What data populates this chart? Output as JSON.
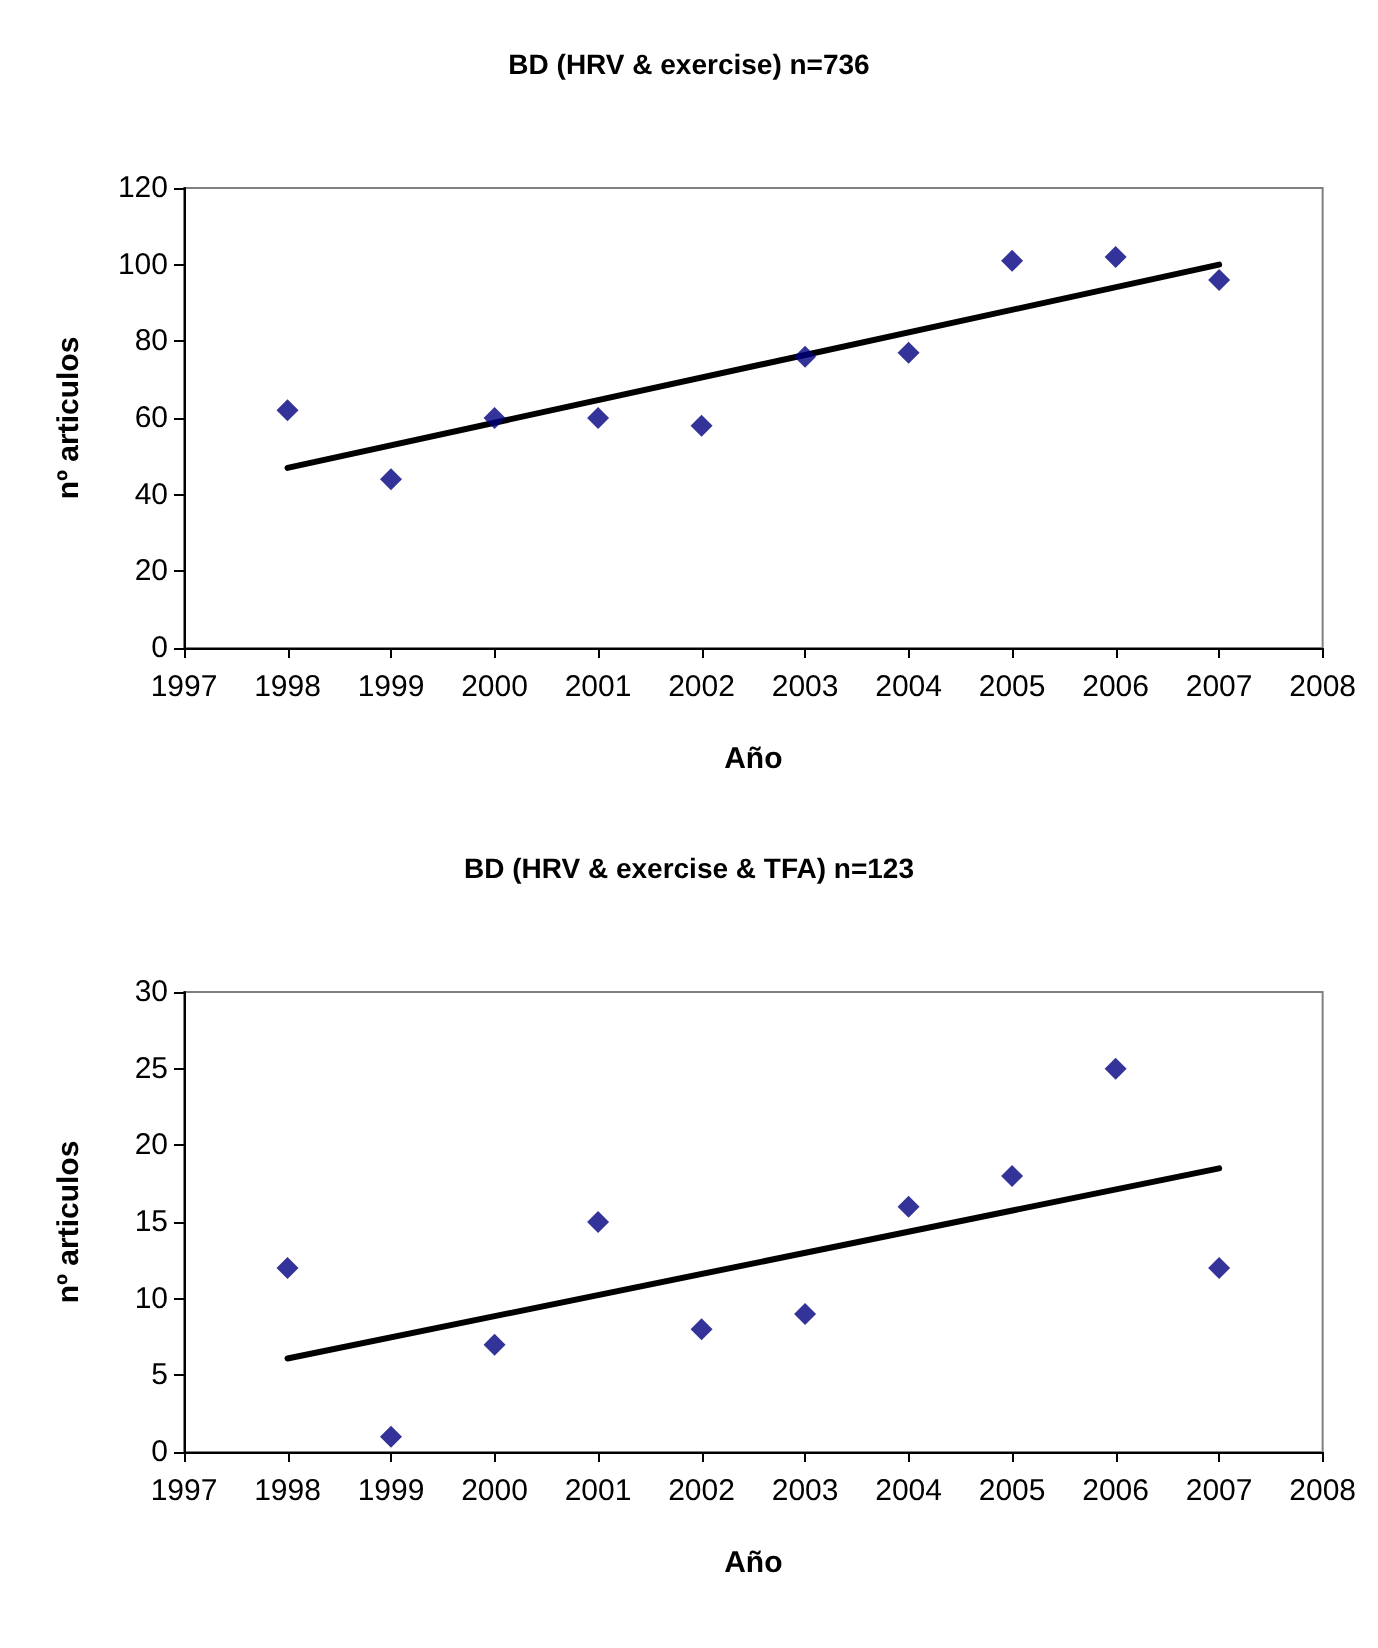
{
  "chart_data": [
    {
      "type": "scatter",
      "title": "BD (HRV & exercise) n=736",
      "xlabel": "Año",
      "ylabel": "nº articulos",
      "xlim": [
        1997,
        2008
      ],
      "xticks": [
        1997,
        1998,
        1999,
        2000,
        2001,
        2002,
        2003,
        2004,
        2005,
        2006,
        2007,
        2008
      ],
      "ylim": [
        0,
        120
      ],
      "yticks": [
        0,
        20,
        40,
        60,
        80,
        100,
        120
      ],
      "grid": false,
      "series": [
        {
          "color": "#000080",
          "marker": "diamond",
          "x": [
            1998,
            1999,
            2000,
            2001,
            2002,
            2003,
            2004,
            2005,
            2006,
            2007
          ],
          "values": [
            62,
            44,
            60,
            60,
            58,
            76,
            77,
            101,
            102,
            96
          ]
        },
        {
          "type": "line",
          "marker": "none",
          "color": "#000000",
          "x": [
            1998,
            2007
          ],
          "values": [
            47,
            100
          ]
        }
      ]
    },
    {
      "type": "scatter",
      "title": "BD (HRV & exercise & TFA) n=123",
      "xlabel": "Año",
      "ylabel": "nº articulos",
      "xlim": [
        1997,
        2008
      ],
      "xticks": [
        1997,
        1998,
        1999,
        2000,
        2001,
        2002,
        2003,
        2004,
        2005,
        2006,
        2007,
        2008
      ],
      "ylim": [
        0,
        30
      ],
      "yticks": [
        0,
        5,
        10,
        15,
        20,
        25,
        30
      ],
      "grid": false,
      "series": [
        {
          "color": "#000080",
          "marker": "diamond",
          "x": [
            1998,
            1999,
            2000,
            2001,
            2002,
            2003,
            2004,
            2005,
            2006,
            2007
          ],
          "values": [
            12,
            1,
            7,
            15,
            8,
            9,
            16,
            18,
            25,
            12
          ]
        },
        {
          "type": "line",
          "marker": "none",
          "color": "#000000",
          "x": [
            1998,
            2007
          ],
          "values": [
            6.1,
            18.5
          ]
        }
      ]
    }
  ]
}
